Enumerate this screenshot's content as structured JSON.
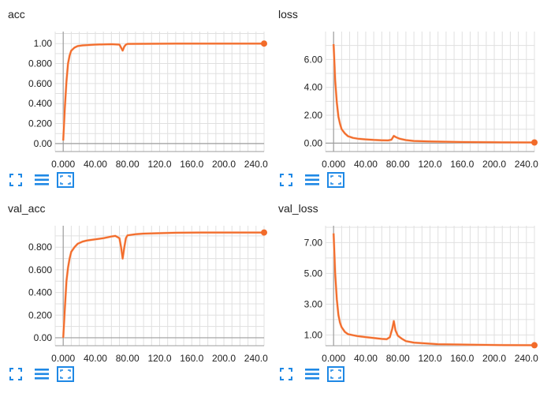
{
  "colors": {
    "line": "#f26b2a",
    "smooth_shadow": "#f9c6aa",
    "grid": "#e0e0e0",
    "axis": "#9e9e9e",
    "icon": "#1e88e5"
  },
  "toolbar_icons": [
    "fullscreen-icon",
    "data-selection-icon",
    "fit-domain-icon"
  ],
  "chart_data": [
    {
      "type": "line",
      "title": "acc",
      "xlim": [
        -10,
        250
      ],
      "ylim": [
        -0.08,
        1.12
      ],
      "xticks": [
        "0.000",
        "40.00",
        "80.00",
        "120.0",
        "160.0",
        "200.0",
        "240.0"
      ],
      "yticks": [
        "0.00",
        "0.200",
        "0.400",
        "0.600",
        "0.800",
        "1.00"
      ],
      "x": [
        0,
        2,
        4,
        6,
        8,
        10,
        14,
        18,
        24,
        30,
        40,
        50,
        60,
        70,
        72,
        74,
        76,
        78,
        80,
        100,
        140,
        180,
        220,
        250
      ],
      "y": [
        0.03,
        0.35,
        0.62,
        0.8,
        0.88,
        0.93,
        0.96,
        0.975,
        0.982,
        0.985,
        0.99,
        0.992,
        0.994,
        0.99,
        0.96,
        0.93,
        0.97,
        0.99,
        0.997,
        0.998,
        0.999,
        0.999,
        1.0,
        1.0
      ]
    },
    {
      "type": "line",
      "title": "loss",
      "xlim": [
        -10,
        250
      ],
      "ylim": [
        -0.6,
        8.0
      ],
      "xticks": [
        "0.000",
        "40.00",
        "80.00",
        "120.0",
        "160.0",
        "200.0",
        "240.0"
      ],
      "yticks": [
        "0.00",
        "2.00",
        "4.00",
        "6.00"
      ],
      "x": [
        0,
        2,
        4,
        6,
        8,
        10,
        14,
        18,
        24,
        30,
        40,
        50,
        60,
        68,
        72,
        75,
        78,
        82,
        90,
        100,
        120,
        160,
        200,
        250
      ],
      "y": [
        7.1,
        4.5,
        2.9,
        1.9,
        1.4,
        1.0,
        0.7,
        0.5,
        0.38,
        0.32,
        0.27,
        0.23,
        0.21,
        0.2,
        0.25,
        0.52,
        0.42,
        0.32,
        0.22,
        0.16,
        0.12,
        0.08,
        0.06,
        0.05
      ]
    },
    {
      "type": "line",
      "title": "val_acc",
      "xlim": [
        -10,
        250
      ],
      "ylim": [
        -0.07,
        0.99
      ],
      "xticks": [
        "0.000",
        "40.00",
        "80.00",
        "120.0",
        "160.0",
        "200.0",
        "240.0"
      ],
      "yticks": [
        "0.00",
        "0.200",
        "0.400",
        "0.600",
        "0.800"
      ],
      "x": [
        0,
        2,
        4,
        6,
        8,
        10,
        14,
        18,
        24,
        30,
        40,
        50,
        60,
        65,
        70,
        72,
        74,
        76,
        78,
        80,
        90,
        100,
        140,
        180,
        220,
        250
      ],
      "y": [
        0.0,
        0.25,
        0.5,
        0.62,
        0.7,
        0.76,
        0.8,
        0.83,
        0.85,
        0.86,
        0.87,
        0.88,
        0.895,
        0.9,
        0.88,
        0.8,
        0.7,
        0.8,
        0.88,
        0.905,
        0.915,
        0.92,
        0.928,
        0.93,
        0.93,
        0.93
      ]
    },
    {
      "type": "line",
      "title": "val_loss",
      "xlim": [
        -10,
        250
      ],
      "ylim": [
        0.3,
        8.1
      ],
      "xticks": [
        "0.000",
        "40.00",
        "80.00",
        "120.0",
        "160.0",
        "200.0",
        "240.0"
      ],
      "yticks": [
        "1.00",
        "3.00",
        "5.00",
        "7.00"
      ],
      "x": [
        0,
        2,
        4,
        6,
        8,
        10,
        14,
        18,
        24,
        30,
        40,
        50,
        60,
        66,
        70,
        73,
        75,
        77,
        80,
        85,
        90,
        100,
        130,
        170,
        210,
        250
      ],
      "y": [
        7.6,
        5.0,
        3.3,
        2.3,
        1.8,
        1.5,
        1.2,
        1.05,
        0.98,
        0.92,
        0.86,
        0.8,
        0.74,
        0.72,
        0.85,
        1.4,
        1.9,
        1.3,
        0.95,
        0.75,
        0.6,
        0.5,
        0.4,
        0.36,
        0.34,
        0.33
      ]
    }
  ]
}
